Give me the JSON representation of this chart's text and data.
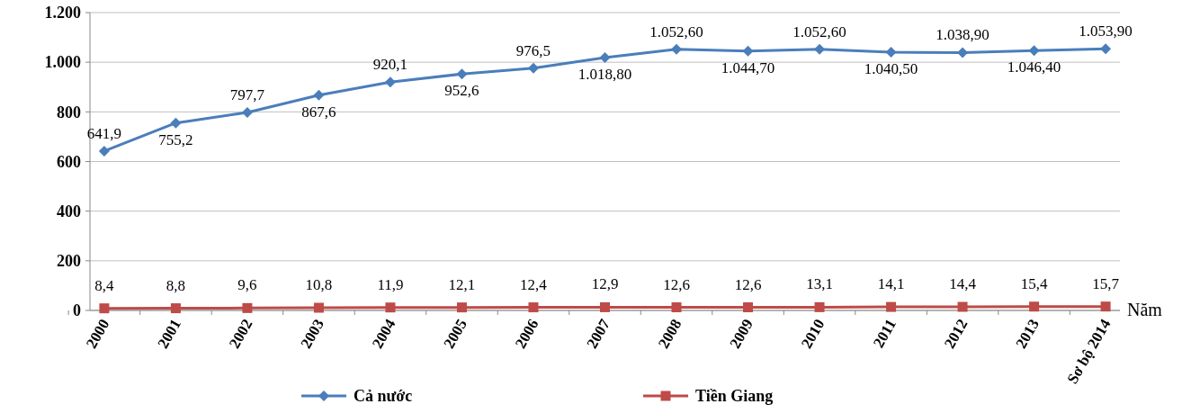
{
  "chart_data": {
    "type": "line",
    "xlabel": "Năm",
    "categories": [
      "2000",
      "2001",
      "2002",
      "2003",
      "2004",
      "2005",
      "2006",
      "2007",
      "2008",
      "2009",
      "2010",
      "2011",
      "2012",
      "2013",
      "Sơ bộ 2014"
    ],
    "ylim": [
      0,
      1200
    ],
    "yticks": [
      0,
      200,
      400,
      600,
      800,
      {
        "value": 1000,
        "label": "1.000"
      },
      {
        "value": 1200,
        "label": "1.200"
      }
    ],
    "grid": "y",
    "legend": "bottom",
    "series": [
      {
        "name": "Cả nước",
        "color": "#4a7ebb",
        "marker": "diamond",
        "values": [
          641.9,
          755.2,
          797.7,
          867.6,
          920.1,
          952.6,
          976.5,
          1018.8,
          1052.6,
          1044.7,
          1052.6,
          1040.5,
          1038.9,
          1046.4,
          1053.9
        ],
        "value_labels": [
          "641,9",
          "755,2",
          "797,7",
          "867,6",
          "920,1",
          "952,6",
          "976,5",
          "1.018,80",
          "1.052,60",
          "1.044,70",
          "1.052,60",
          "1.040,50",
          "1.038,90",
          "1.046,40",
          "1.053,90"
        ]
      },
      {
        "name": "Tiền Giang",
        "color": "#be4b48",
        "marker": "square",
        "values": [
          8.4,
          8.8,
          9.6,
          10.8,
          11.9,
          12.1,
          12.4,
          12.9,
          12.6,
          12.6,
          13.1,
          14.1,
          14.4,
          15.4,
          15.7
        ],
        "value_labels": [
          "8,4",
          "8,8",
          "9,6",
          "10,8",
          "11,9",
          "12,1",
          "12,4",
          "12,9",
          "12,6",
          "12,6",
          "13,1",
          "14,1",
          "14,4",
          "15,4",
          "15,7"
        ]
      }
    ]
  }
}
